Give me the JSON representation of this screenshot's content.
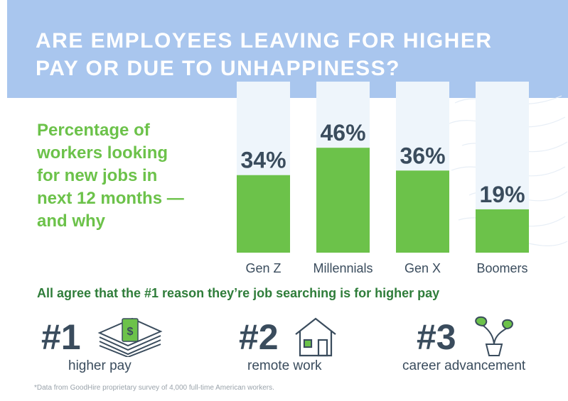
{
  "header": {
    "title_line1": "ARE EMPLOYEES LEAVING FOR HIGHER",
    "title_line2": "PAY OR DUE TO UNHAPPINESS?"
  },
  "subtitle_lines": [
    "Percentage of",
    "workers looking",
    "for new jobs in",
    "next 12 months —",
    "and why"
  ],
  "chart_data": {
    "type": "bar",
    "categories": [
      "Gen Z",
      "Millennials",
      "Gen X",
      "Boomers"
    ],
    "values": [
      34,
      46,
      36,
      19
    ],
    "data_labels": [
      "34%",
      "46%",
      "36%",
      "19%"
    ],
    "ylim": [
      0,
      100
    ],
    "grid": false,
    "legend": "none",
    "colors": {
      "bar": "#6cc24a",
      "track": "#eef5fb",
      "label": "#3a4c5d"
    }
  },
  "tagline": "All agree that the #1 reason they’re job searching is for higher pay",
  "reasons": [
    {
      "rank": "#1",
      "label": "higher pay",
      "icon": "money-stack-icon"
    },
    {
      "rank": "#2",
      "label": "remote work",
      "icon": "house-icon"
    },
    {
      "rank": "#3",
      "label": "career advancement",
      "icon": "plant-icon"
    }
  ],
  "footnote": "*Data from GoodHire proprietary survey of 4,000 full-time American workers.",
  "colors": {
    "header": "#a9c6ee",
    "accent_green": "#6cc24a",
    "dark_green": "#2f7d3a",
    "text_dark": "#3a4c5d"
  }
}
